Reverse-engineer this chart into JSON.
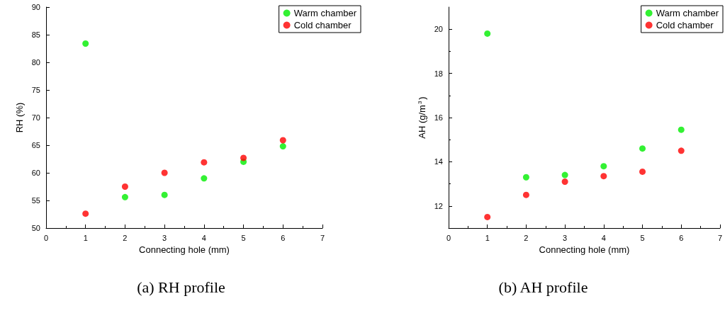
{
  "chart_data": [
    {
      "type": "scatter",
      "title": "(a) RH profile",
      "xlabel": "Connecting hole (mm)",
      "ylabel": "RH (%)",
      "x": [
        1,
        2,
        3,
        4,
        5,
        6
      ],
      "series": [
        {
          "name": "Warm chamber",
          "color": "#00ee00",
          "values": [
            83.4,
            55.6,
            56.0,
            59.0,
            62.0,
            64.8
          ]
        },
        {
          "name": "Cold chamber",
          "color": "#ff0000",
          "values": [
            52.6,
            57.5,
            60.0,
            61.9,
            62.7,
            65.9
          ]
        }
      ],
      "xlim": [
        0,
        7
      ],
      "xticks": [
        0,
        1,
        2,
        3,
        4,
        5,
        6,
        7
      ],
      "ylim": [
        50,
        90
      ],
      "yticks": [
        50,
        55,
        60,
        65,
        70,
        75,
        80,
        85,
        90
      ],
      "marker": "circle",
      "legend": "top right",
      "grid": false
    },
    {
      "type": "scatter",
      "title": "(b) AH profile",
      "xlabel": "Connecting hole (mm)",
      "ylabel": "AH (g/m$^{3}$)",
      "x": [
        1,
        2,
        3,
        4,
        5,
        6
      ],
      "series": [
        {
          "name": "Warm chamber",
          "color": "#00ee00",
          "values": [
            19.8,
            13.3,
            13.4,
            13.8,
            14.6,
            15.45
          ]
        },
        {
          "name": "Cold chamber",
          "color": "#ff0000",
          "values": [
            11.5,
            12.5,
            13.1,
            13.35,
            13.55,
            14.5
          ]
        }
      ],
      "xlim": [
        0,
        7
      ],
      "xticks": [
        0,
        1,
        2,
        3,
        4,
        5,
        6,
        7
      ],
      "ylim": [
        11,
        21
      ],
      "yticks": [
        12,
        14,
        16,
        18,
        20
      ],
      "marker": "circle",
      "legend": "top right",
      "grid": false
    }
  ]
}
